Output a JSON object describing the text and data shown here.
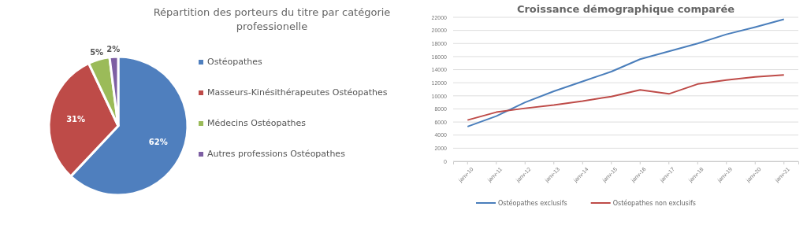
{
  "chart_data": [
    {
      "type": "pie",
      "title": "Répartition des porteurs du titre par catégorie professionelle",
      "categories": [
        "Ostéopathes",
        "Masseurs-Kinésithérapeutes Ostéopathes",
        "Médecins Ostéopathes",
        "Autres professions Ostéopathes"
      ],
      "values": [
        62,
        31,
        5,
        2
      ],
      "colors": [
        "#4f7fbe",
        "#be4b48",
        "#9bbb59",
        "#7d5fa3"
      ],
      "value_labels": [
        "62%",
        "31%",
        "5%",
        "2%"
      ],
      "legend": "right"
    },
    {
      "type": "line",
      "title": "Croissance démographique comparée",
      "categories": [
        "janv-10",
        "janv-11",
        "janv-12",
        "janv-13",
        "janv-14",
        "janv-15",
        "janv-16",
        "janv-17",
        "janv-18",
        "janv-19",
        "janv-20",
        "janv-21"
      ],
      "series": [
        {
          "name": "Ostéopathes exclusifs",
          "color": "#4a7ebb",
          "values": [
            5300,
            6900,
            9000,
            10700,
            12200,
            13700,
            15600,
            16800,
            18000,
            19400,
            20500,
            21700
          ]
        },
        {
          "name": "Ostéopathes non exclusifs",
          "color": "#be4b48",
          "values": [
            6300,
            7500,
            8100,
            8600,
            9200,
            9900,
            10900,
            10300,
            11800,
            12400,
            12900,
            13200
          ]
        }
      ],
      "ylim": [
        0,
        22000
      ],
      "yticks": [
        0,
        2000,
        4000,
        6000,
        8000,
        10000,
        12000,
        14000,
        16000,
        18000,
        20000,
        22000
      ],
      "grid": "y",
      "legend": "bottom",
      "marker": "none",
      "line_style": "solid"
    }
  ]
}
